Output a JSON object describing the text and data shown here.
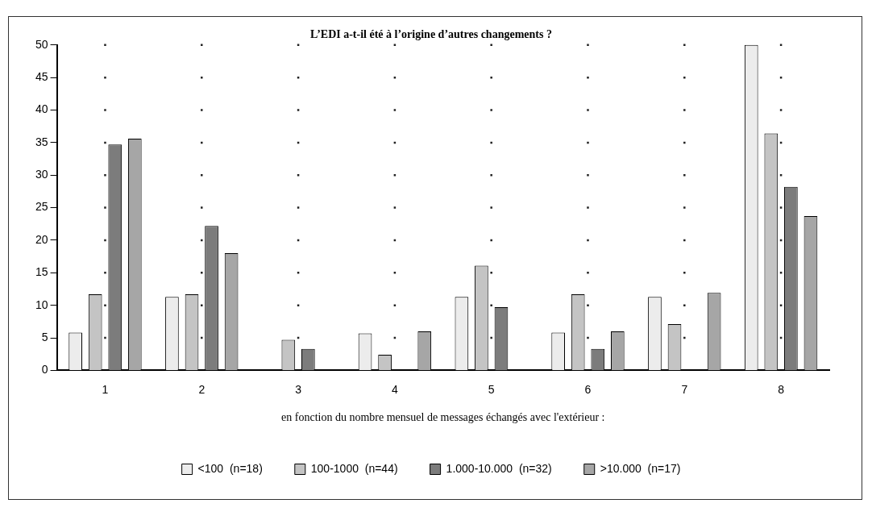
{
  "chart_data": {
    "type": "bar",
    "title": "L’EDI a-t-il été à l’origine d’autres changements ?",
    "xlabel": "en fonction du nombre mensuel de messages échangés avec l'extérieur :",
    "categories": [
      "1",
      "2",
      "3",
      "4",
      "5",
      "6",
      "7",
      "8"
    ],
    "series": [
      {
        "name": "<100  (n=18)",
        "color": "#ececec",
        "values": [
          5.8,
          11.3,
          null,
          5.7,
          11.3,
          5.8,
          11.3,
          50
        ]
      },
      {
        "name": "100-1000  (n=44)",
        "color": "#c4c4c4",
        "values": [
          11.7,
          11.7,
          4.7,
          2.4,
          16.1,
          11.7,
          7.1,
          36.4
        ]
      },
      {
        "name": "1.000-10.000  (n=32)",
        "color": "#7c7c7c",
        "values": [
          34.7,
          22.2,
          3.3,
          null,
          9.7,
          3.3,
          null,
          28.2
        ]
      },
      {
        "name": ">10.000  (n=17)",
        "color": "#a6a6a6",
        "values": [
          35.6,
          18.0,
          null,
          6.0,
          null,
          6.0,
          11.9,
          23.7
        ]
      }
    ],
    "ylim": [
      0,
      50
    ],
    "yticks": [
      0,
      5,
      10,
      15,
      20,
      25,
      30,
      35,
      40,
      45,
      50
    ],
    "grid": true,
    "legend": "bottom"
  }
}
